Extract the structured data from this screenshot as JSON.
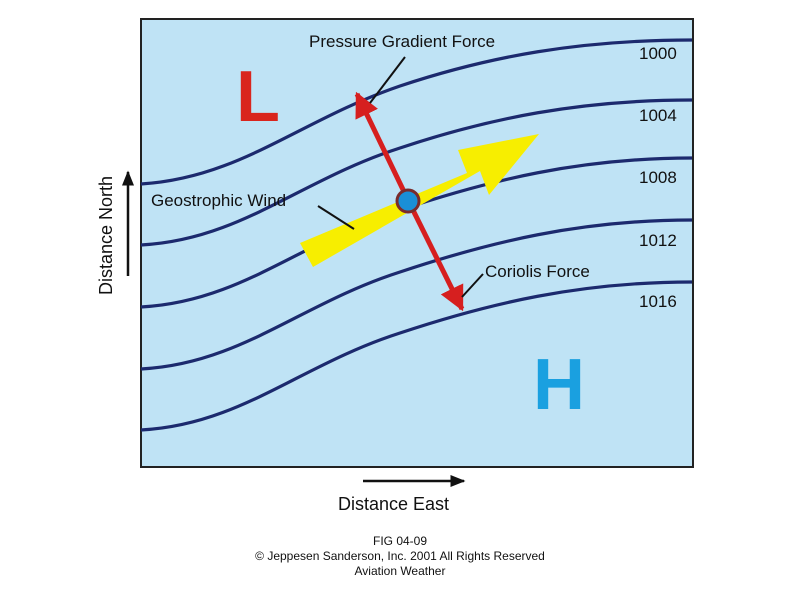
{
  "diagram": {
    "low_label": "L",
    "high_label": "H",
    "isobar_values": [
      "1000",
      "1004",
      "1008",
      "1012",
      "1016"
    ],
    "force_labels": {
      "pressure_gradient": "Pressure Gradient Force",
      "geostrophic_wind": "Geostrophic Wind",
      "coriolis": "Coriolis Force"
    },
    "axes": {
      "x_label": "Distance East",
      "y_label": "Distance North"
    },
    "colors": {
      "background": "#bfe3f5",
      "isobar": "#1c2a6e",
      "low": "#d9251d",
      "high": "#1aa0e0",
      "force_arrow": "#d61f1f",
      "wind_arrow": "#f7ee00",
      "parcel": "#1a8fd6"
    }
  },
  "caption": {
    "fig_id": "FIG 04-09",
    "copyright": "© Jeppesen Sanderson, Inc. 2001 All Rights Reserved",
    "book": "Aviation Weather"
  }
}
